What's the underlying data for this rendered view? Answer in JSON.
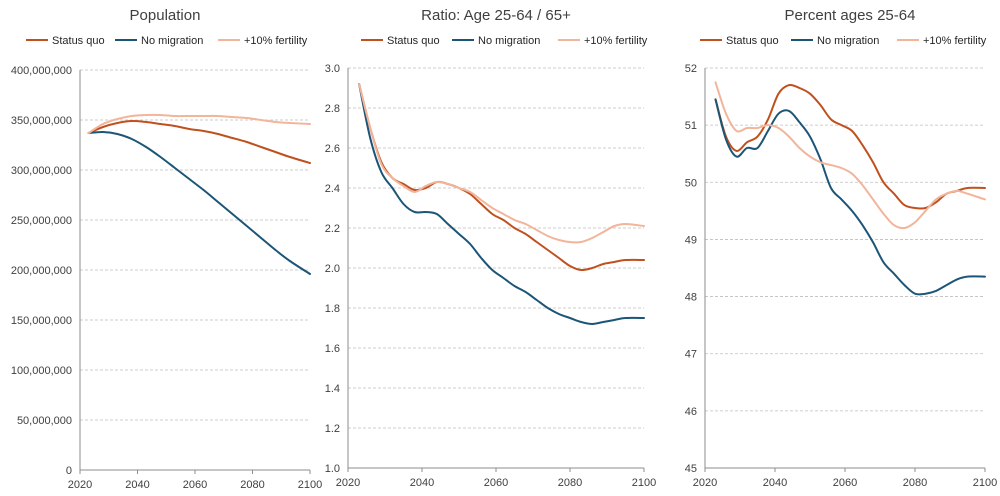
{
  "colors": {
    "status_quo": "#C0501E",
    "no_migration": "#1B5577",
    "fertility": "#F2B59A",
    "grid": "#BFBFBF",
    "axis": "#8C8C8C",
    "text": "#404040"
  },
  "chart_data": [
    {
      "type": "line",
      "title": "Population",
      "xlabel": "",
      "ylabel": "",
      "xlim": [
        2020,
        2100
      ],
      "ylim": [
        0,
        400000000
      ],
      "x_ticks": [
        2020,
        2040,
        2060,
        2080,
        2100
      ],
      "x_tick_labels": [
        "2020",
        "2040",
        "2060",
        "2080",
        "2100"
      ],
      "y_ticks": [
        0,
        50000000,
        100000000,
        150000000,
        200000000,
        250000000,
        300000000,
        350000000,
        400000000
      ],
      "y_tick_labels": [
        "0",
        "50,000,000",
        "100,000,000",
        "150,000,000",
        "200,000,000",
        "250,000,000",
        "300,000,000",
        "350,000,000",
        "400,000,000"
      ],
      "legend": [
        "Status quo",
        "No migration",
        "+10% fertility"
      ],
      "legend_position": "top",
      "grid": "horizontal dashed",
      "series": [
        {
          "name": "Status quo",
          "x": [
            2023,
            2028,
            2033,
            2038,
            2043,
            2048,
            2053,
            2058,
            2063,
            2068,
            2073,
            2078,
            2083,
            2088,
            2093,
            2100
          ],
          "values": [
            337000000,
            343000000,
            347000000,
            349000000,
            348000000,
            346000000,
            344000000,
            341000000,
            339000000,
            336000000,
            332000000,
            328000000,
            323000000,
            318000000,
            313000000,
            307000000
          ]
        },
        {
          "name": "No migration",
          "x": [
            2023,
            2028,
            2033,
            2038,
            2043,
            2048,
            2053,
            2058,
            2063,
            2068,
            2073,
            2078,
            2083,
            2088,
            2093,
            2100
          ],
          "values": [
            337000000,
            338000000,
            336000000,
            331000000,
            323000000,
            313000000,
            302000000,
            291000000,
            280000000,
            268000000,
            256000000,
            244000000,
            232000000,
            220000000,
            209000000,
            196000000
          ]
        },
        {
          "name": "+10% fertility",
          "x": [
            2023,
            2028,
            2033,
            2038,
            2043,
            2048,
            2053,
            2058,
            2063,
            2068,
            2073,
            2078,
            2083,
            2088,
            2093,
            2100
          ],
          "values": [
            337000000,
            346000000,
            351000000,
            354000000,
            355000000,
            355000000,
            354000000,
            354000000,
            354000000,
            354000000,
            353000000,
            352000000,
            350000000,
            348000000,
            347000000,
            346000000
          ]
        }
      ]
    },
    {
      "type": "line",
      "title": "Ratio: Age 25-64 / 65+",
      "xlabel": "",
      "ylabel": "",
      "xlim": [
        2020,
        2100
      ],
      "ylim": [
        1.0,
        3.0
      ],
      "x_ticks": [
        2020,
        2040,
        2060,
        2080,
        2100
      ],
      "x_tick_labels": [
        "2020",
        "2040",
        "2060",
        "2080",
        "2100"
      ],
      "y_ticks": [
        1.0,
        1.2,
        1.4,
        1.6,
        1.8,
        2.0,
        2.2,
        2.4,
        2.6,
        2.8,
        3.0
      ],
      "y_tick_labels": [
        "1.0",
        "1.2",
        "1.4",
        "1.6",
        "1.8",
        "2.0",
        "2.2",
        "2.4",
        "2.6",
        "2.8",
        "3.0"
      ],
      "legend": [
        "Status quo",
        "No migration",
        "+10% fertility"
      ],
      "legend_position": "top",
      "grid": "horizontal dashed",
      "series": [
        {
          "name": "Status quo",
          "x": [
            2023,
            2026,
            2029,
            2032,
            2035,
            2038,
            2041,
            2044,
            2047,
            2050,
            2053,
            2056,
            2059,
            2062,
            2065,
            2068,
            2071,
            2074,
            2077,
            2080,
            2083,
            2086,
            2089,
            2092,
            2095,
            2100
          ],
          "values": [
            2.92,
            2.7,
            2.53,
            2.45,
            2.42,
            2.39,
            2.4,
            2.43,
            2.42,
            2.4,
            2.37,
            2.32,
            2.27,
            2.24,
            2.2,
            2.17,
            2.13,
            2.09,
            2.05,
            2.01,
            1.99,
            2.0,
            2.02,
            2.03,
            2.04,
            2.04
          ]
        },
        {
          "name": "No migration",
          "x": [
            2023,
            2026,
            2029,
            2032,
            2035,
            2038,
            2041,
            2044,
            2047,
            2050,
            2053,
            2056,
            2059,
            2062,
            2065,
            2068,
            2071,
            2074,
            2077,
            2080,
            2083,
            2086,
            2089,
            2092,
            2095,
            2100
          ],
          "values": [
            2.92,
            2.65,
            2.48,
            2.4,
            2.32,
            2.28,
            2.28,
            2.27,
            2.22,
            2.17,
            2.12,
            2.05,
            1.99,
            1.95,
            1.91,
            1.88,
            1.84,
            1.8,
            1.77,
            1.75,
            1.73,
            1.72,
            1.73,
            1.74,
            1.75,
            1.75
          ]
        },
        {
          "name": "+10% fertility",
          "x": [
            2023,
            2026,
            2029,
            2032,
            2035,
            2038,
            2041,
            2044,
            2047,
            2050,
            2053,
            2056,
            2059,
            2062,
            2065,
            2068,
            2071,
            2074,
            2077,
            2080,
            2083,
            2086,
            2089,
            2092,
            2095,
            2100
          ],
          "values": [
            2.92,
            2.7,
            2.52,
            2.45,
            2.41,
            2.38,
            2.41,
            2.43,
            2.42,
            2.4,
            2.38,
            2.34,
            2.3,
            2.27,
            2.24,
            2.22,
            2.19,
            2.16,
            2.14,
            2.13,
            2.13,
            2.15,
            2.18,
            2.21,
            2.22,
            2.21
          ]
        }
      ]
    },
    {
      "type": "line",
      "title": "Percent ages 25-64",
      "xlabel": "",
      "ylabel": "",
      "xlim": [
        2020,
        2100
      ],
      "ylim": [
        45,
        52
      ],
      "x_ticks": [
        2020,
        2040,
        2060,
        2080,
        2100
      ],
      "x_tick_labels": [
        "2020",
        "2040",
        "2060",
        "2080",
        "2100"
      ],
      "y_ticks": [
        45,
        46,
        47,
        48,
        49,
        50,
        51,
        52
      ],
      "y_tick_labels": [
        "45",
        "46",
        "47",
        "48",
        "49",
        "50",
        "51",
        "52"
      ],
      "legend": [
        "Status quo",
        "No migration",
        "+10% fertility"
      ],
      "legend_position": "top",
      "grid": "horizontal dashed",
      "series": [
        {
          "name": "Status quo",
          "x": [
            2023,
            2026,
            2029,
            2032,
            2035,
            2038,
            2041,
            2044,
            2047,
            2050,
            2053,
            2056,
            2059,
            2062,
            2065,
            2068,
            2071,
            2074,
            2077,
            2080,
            2083,
            2086,
            2089,
            2092,
            2095,
            2100
          ],
          "values": [
            51.45,
            50.8,
            50.55,
            50.7,
            50.8,
            51.1,
            51.55,
            51.7,
            51.65,
            51.55,
            51.35,
            51.1,
            51.0,
            50.9,
            50.65,
            50.35,
            50.0,
            49.8,
            49.6,
            49.55,
            49.55,
            49.65,
            49.8,
            49.85,
            49.9,
            49.9
          ]
        },
        {
          "name": "No migration",
          "x": [
            2023,
            2026,
            2029,
            2032,
            2035,
            2038,
            2041,
            2044,
            2047,
            2050,
            2053,
            2056,
            2059,
            2062,
            2065,
            2068,
            2071,
            2074,
            2077,
            2080,
            2083,
            2086,
            2089,
            2092,
            2095,
            2100
          ],
          "values": [
            51.45,
            50.75,
            50.45,
            50.6,
            50.6,
            50.9,
            51.2,
            51.25,
            51.05,
            50.8,
            50.4,
            49.9,
            49.7,
            49.5,
            49.25,
            48.95,
            48.6,
            48.4,
            48.2,
            48.05,
            48.05,
            48.1,
            48.2,
            48.3,
            48.35,
            48.35
          ]
        },
        {
          "name": "+10% fertility",
          "x": [
            2023,
            2026,
            2029,
            2032,
            2035,
            2038,
            2041,
            2044,
            2047,
            2050,
            2053,
            2056,
            2059,
            2062,
            2065,
            2068,
            2071,
            2074,
            2077,
            2080,
            2083,
            2086,
            2089,
            2092,
            2095,
            2100
          ],
          "values": [
            51.75,
            51.2,
            50.9,
            50.95,
            50.95,
            51.0,
            50.95,
            50.8,
            50.6,
            50.45,
            50.35,
            50.3,
            50.25,
            50.15,
            49.95,
            49.7,
            49.45,
            49.25,
            49.2,
            49.3,
            49.5,
            49.7,
            49.8,
            49.85,
            49.8,
            49.7
          ]
        }
      ]
    }
  ]
}
